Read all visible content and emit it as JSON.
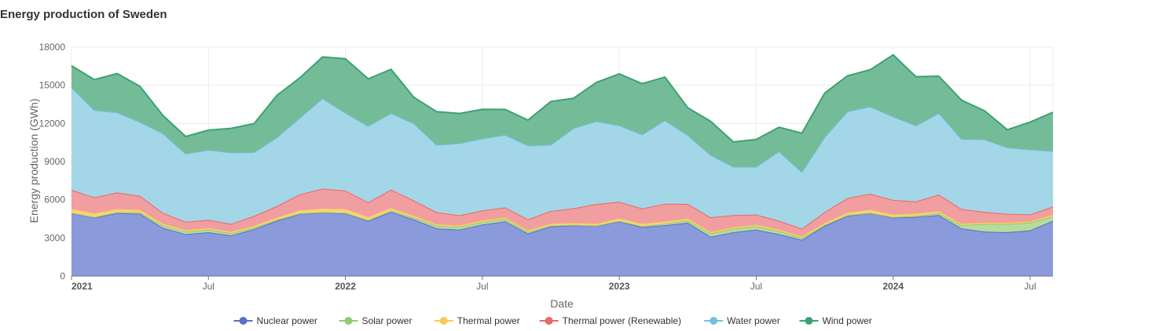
{
  "chart_data": {
    "type": "area",
    "stacked": true,
    "title": "Energy production of Sweden",
    "xlabel": "Date",
    "ylabel": "Energy production (GWh)",
    "ylim": [
      0,
      18000
    ],
    "yticks": [
      0,
      3000,
      6000,
      9000,
      12000,
      15000,
      18000
    ],
    "xticks": [
      {
        "label": "2021",
        "date": "2021-01",
        "major": true
      },
      {
        "label": "Jul",
        "date": "2021-07",
        "major": false
      },
      {
        "label": "2022",
        "date": "2022-01",
        "major": true
      },
      {
        "label": "Jul",
        "date": "2022-07",
        "major": false
      },
      {
        "label": "2023",
        "date": "2023-01",
        "major": true
      },
      {
        "label": "Jul",
        "date": "2023-07",
        "major": false
      },
      {
        "label": "2024",
        "date": "2024-01",
        "major": true
      },
      {
        "label": "Jul",
        "date": "2024-07",
        "major": false
      }
    ],
    "grid": true,
    "legend_position": "bottom",
    "x": [
      "2021-01",
      "2021-02",
      "2021-03",
      "2021-04",
      "2021-05",
      "2021-06",
      "2021-07",
      "2021-08",
      "2021-09",
      "2021-10",
      "2021-11",
      "2021-12",
      "2022-01",
      "2022-02",
      "2022-03",
      "2022-04",
      "2022-05",
      "2022-06",
      "2022-07",
      "2022-08",
      "2022-09",
      "2022-10",
      "2022-11",
      "2022-12",
      "2023-01",
      "2023-02",
      "2023-03",
      "2023-04",
      "2023-05",
      "2023-06",
      "2023-07",
      "2023-08",
      "2023-09",
      "2023-10",
      "2023-11",
      "2023-12",
      "2024-01",
      "2024-02",
      "2024-03",
      "2024-04",
      "2024-05",
      "2024-06",
      "2024-07",
      "2024-08"
    ],
    "series": [
      {
        "name": "Nuclear power",
        "color": "#5b6fc7",
        "fill": "#8a9adb",
        "values": [
          4950,
          4600,
          4950,
          4900,
          3800,
          3300,
          3450,
          3200,
          3700,
          4350,
          4900,
          5000,
          4950,
          4350,
          5050,
          4450,
          3750,
          3650,
          4050,
          4300,
          3350,
          3900,
          4000,
          3950,
          4300,
          3850,
          4000,
          4200,
          3100,
          3450,
          3650,
          3300,
          2850,
          3950,
          4750,
          4950,
          4600,
          4650,
          4800,
          3750,
          3500,
          3450,
          3600,
          4350
        ]
      },
      {
        "name": "Solar power",
        "color": "#91cc75",
        "fill": "#b6dc9c",
        "values": [
          30,
          40,
          70,
          110,
          180,
          200,
          200,
          170,
          120,
          70,
          30,
          20,
          30,
          50,
          100,
          150,
          200,
          220,
          210,
          180,
          130,
          70,
          30,
          20,
          40,
          70,
          120,
          180,
          250,
          280,
          270,
          230,
          150,
          80,
          40,
          20,
          40,
          90,
          150,
          250,
          600,
          650,
          600,
          350
        ]
      },
      {
        "name": "Thermal power",
        "color": "#fac858",
        "fill": "#f7d27a",
        "values": [
          300,
          300,
          250,
          200,
          150,
          120,
          120,
          120,
          130,
          180,
          250,
          300,
          300,
          250,
          200,
          150,
          120,
          110,
          120,
          120,
          130,
          150,
          150,
          150,
          200,
          200,
          170,
          150,
          120,
          110,
          120,
          120,
          130,
          150,
          200,
          250,
          200,
          180,
          160,
          120,
          100,
          100,
          100,
          120
        ]
      },
      {
        "name": "Thermal power (Renewable)",
        "color": "#ee6666",
        "fill": "#f09ea0",
        "values": [
          1500,
          1250,
          1300,
          1100,
          850,
          650,
          650,
          620,
          780,
          900,
          1250,
          1550,
          1450,
          1150,
          1450,
          1200,
          950,
          800,
          780,
          800,
          850,
          1000,
          1150,
          1550,
          1300,
          1200,
          1400,
          1150,
          1150,
          950,
          800,
          700,
          600,
          850,
          1150,
          1250,
          1150,
          950,
          1300,
          1150,
          850,
          700,
          550,
          650
        ]
      },
      {
        "name": "Water power",
        "color": "#73c0de",
        "fill": "#a3d7e8",
        "values": [
          8050,
          6850,
          6300,
          5800,
          6250,
          5350,
          5500,
          5600,
          5000,
          5400,
          6000,
          7100,
          6100,
          6000,
          6000,
          6050,
          5300,
          5650,
          5650,
          5700,
          5800,
          5200,
          6300,
          6500,
          6000,
          5800,
          6550,
          5400,
          4900,
          3800,
          3750,
          5450,
          4450,
          5900,
          6800,
          6850,
          6550,
          5950,
          6400,
          5500,
          5700,
          5200,
          5100,
          4350
        ]
      },
      {
        "name": "Wind power",
        "color": "#3ba272",
        "fill": "#74bc97",
        "values": [
          1700,
          2400,
          3050,
          2800,
          1400,
          1350,
          1550,
          1900,
          2250,
          3300,
          3150,
          3250,
          4250,
          3700,
          3450,
          2050,
          2600,
          2350,
          2300,
          2000,
          2000,
          3400,
          2350,
          3050,
          4050,
          4000,
          3400,
          2150,
          2650,
          1950,
          2150,
          1900,
          3050,
          3450,
          2800,
          2900,
          4850,
          3850,
          2900,
          3050,
          2250,
          1400,
          2150,
          3050
        ]
      }
    ]
  }
}
